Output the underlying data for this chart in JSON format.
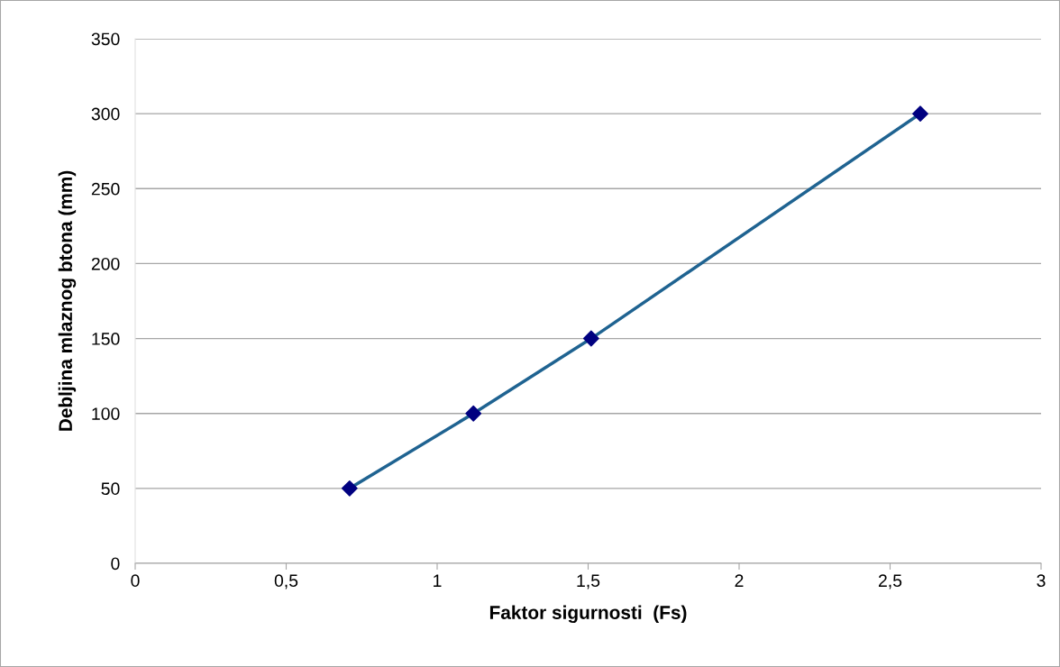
{
  "chart_data": {
    "type": "line",
    "xlabel": "Faktor sigurnosti  (Fs)",
    "ylabel": "Debljina mlaznog btona (mm)",
    "series": [
      {
        "x": [
          0.71,
          1.12,
          1.51,
          2.6
        ],
        "values": [
          50,
          100,
          150,
          300
        ],
        "color": "#1f6391",
        "colors": [
          "#000080",
          "#000080",
          "#000080",
          "#000080"
        ]
      }
    ],
    "xlim": [
      0,
      3
    ],
    "xticks": [
      0,
      {
        "value": 0.5,
        "label": "0,5"
      },
      1,
      {
        "value": 1.5,
        "label": "1,5"
      },
      2,
      {
        "value": 2.5,
        "label": "2,5"
      },
      3
    ],
    "ylim": [
      0,
      350
    ],
    "yticks": [
      0,
      50,
      100,
      150,
      200,
      250,
      300,
      350
    ],
    "grid": "y",
    "marker": "diamond",
    "line_style": "solid"
  }
}
